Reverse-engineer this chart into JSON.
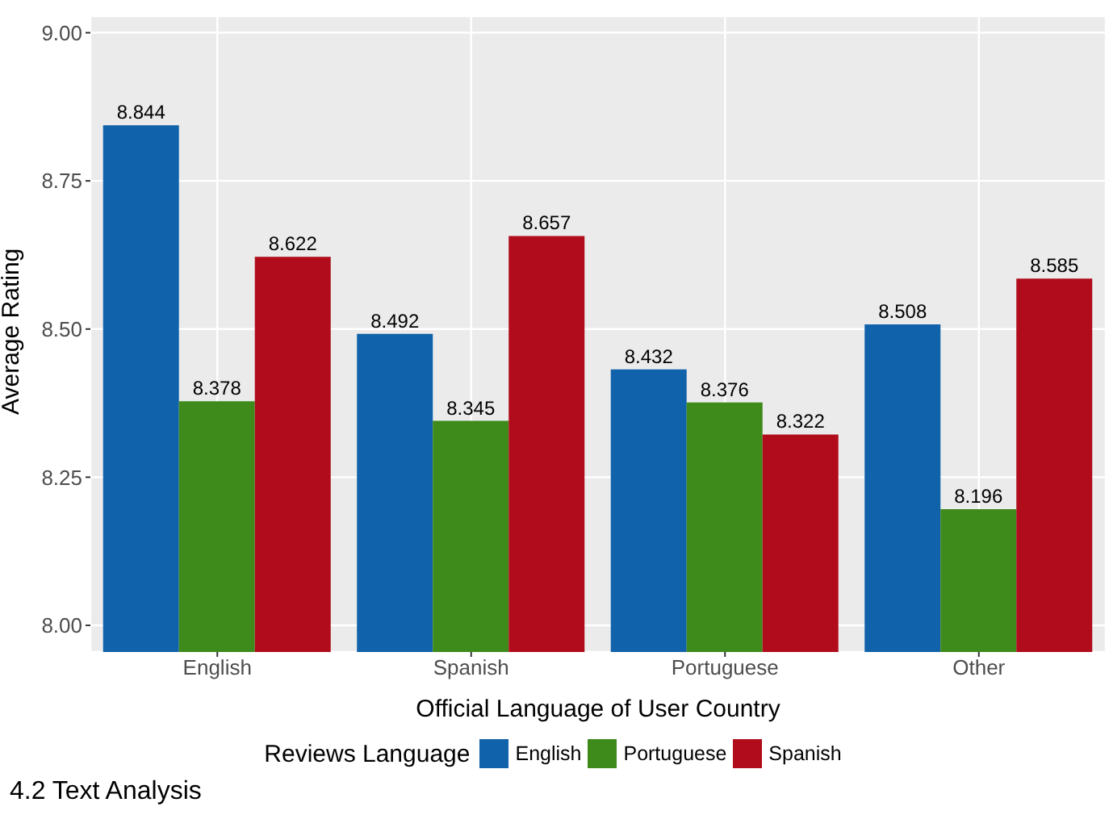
{
  "chart_data": {
    "type": "bar",
    "xlabel": "Official Language of User Country",
    "ylabel": "Average Rating",
    "legend_title": "Reviews Language",
    "categories": [
      "English",
      "Spanish",
      "Portuguese",
      "Other"
    ],
    "series": [
      {
        "name": "English",
        "color": "#1062aa",
        "values": [
          8.844,
          8.492,
          8.432,
          8.508
        ]
      },
      {
        "name": "Portuguese",
        "color": "#3e8a1b",
        "values": [
          8.378,
          8.345,
          8.376,
          8.196
        ]
      },
      {
        "name": "Spanish",
        "color": "#b00c1b",
        "values": [
          8.622,
          8.657,
          8.322,
          8.585
        ]
      }
    ],
    "ylim": [
      7.955,
      9.028
    ],
    "yticks": [
      {
        "value": 8,
        "label": "8.00"
      },
      {
        "value": 8.25,
        "label": "8.25"
      },
      {
        "value": 8.5,
        "label": "8.50"
      },
      {
        "value": 8.75,
        "label": "8.75"
      },
      {
        "value": 9,
        "label": "9.00"
      }
    ],
    "grid": true,
    "legend": "bottom",
    "data_labels": true,
    "annotations": [
      "4.2 Text Analysis"
    ]
  }
}
